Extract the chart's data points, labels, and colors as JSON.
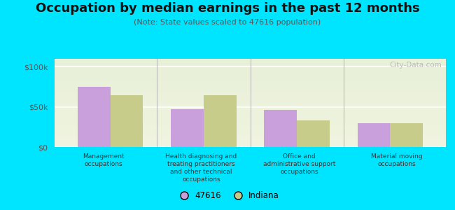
{
  "title": "Occupation by median earnings in the past 12 months",
  "subtitle": "(Note: State values scaled to 47616 population)",
  "categories": [
    "Management\noccupations",
    "Health diagnosing and\ntreating practitioners\nand other technical\noccupations",
    "Office and\nadministrative support\noccupations",
    "Material moving\noccupations"
  ],
  "values_47616": [
    75000,
    47000,
    46000,
    30000
  ],
  "values_indiana": [
    65000,
    65000,
    33000,
    30000
  ],
  "color_47616": "#c9a0dc",
  "color_indiana": "#c8cc8a",
  "background_outer": "#00e5ff",
  "yticks": [
    0,
    50000,
    100000
  ],
  "ytick_labels": [
    "$0",
    "$50k",
    "$100k"
  ],
  "ylim": [
    0,
    110000
  ],
  "bar_width": 0.35,
  "legend_label_1": "47616",
  "legend_label_2": "Indiana",
  "watermark": "City-Data.com",
  "title_fontsize": 13,
  "subtitle_fontsize": 8
}
